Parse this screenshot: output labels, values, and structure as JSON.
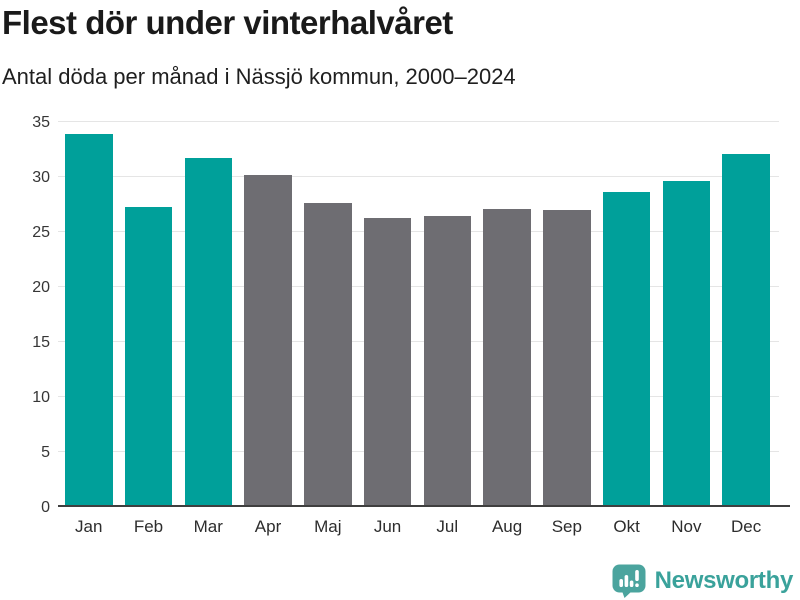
{
  "header": {
    "title": "Flest dör under vinterhalvåret",
    "subtitle": "Antal döda per månad i Nässjö kommun, 2000–2024"
  },
  "chart_data": {
    "type": "bar",
    "title": "Flest dör under vinterhalvåret",
    "subtitle": "Antal döda per månad i Nässjö kommun, 2000–2024",
    "categories": [
      "Jan",
      "Feb",
      "Mar",
      "Apr",
      "Maj",
      "Jun",
      "Jul",
      "Aug",
      "Sep",
      "Okt",
      "Nov",
      "Dec"
    ],
    "values": [
      33.9,
      27.3,
      31.7,
      30.2,
      27.6,
      26.3,
      26.5,
      27.1,
      27.0,
      28.6,
      29.6,
      32.1
    ],
    "bar_colors": [
      "#00a09a",
      "#00a09a",
      "#00a09a",
      "#6e6d72",
      "#6e6d72",
      "#6e6d72",
      "#6e6d72",
      "#6e6d72",
      "#6e6d72",
      "#00a09a",
      "#00a09a",
      "#00a09a"
    ],
    "xlabel": "",
    "ylabel": "",
    "ylim": [
      0,
      35
    ],
    "yticks": [
      0,
      5,
      10,
      15,
      20,
      25,
      30,
      35
    ],
    "grid": "horizontal",
    "legend": "none"
  },
  "colors": {
    "highlight_teal": "#00a09a",
    "neutral_gray": "#6e6d72",
    "gridline": "#e5e5e5",
    "axis_line": "#3f3f3f",
    "title_text": "#1a1a1a"
  },
  "footer": {
    "brand": "Newsworthy",
    "brand_text_color": "#3aa29b",
    "logo_mark_color": "#4ba49e"
  }
}
